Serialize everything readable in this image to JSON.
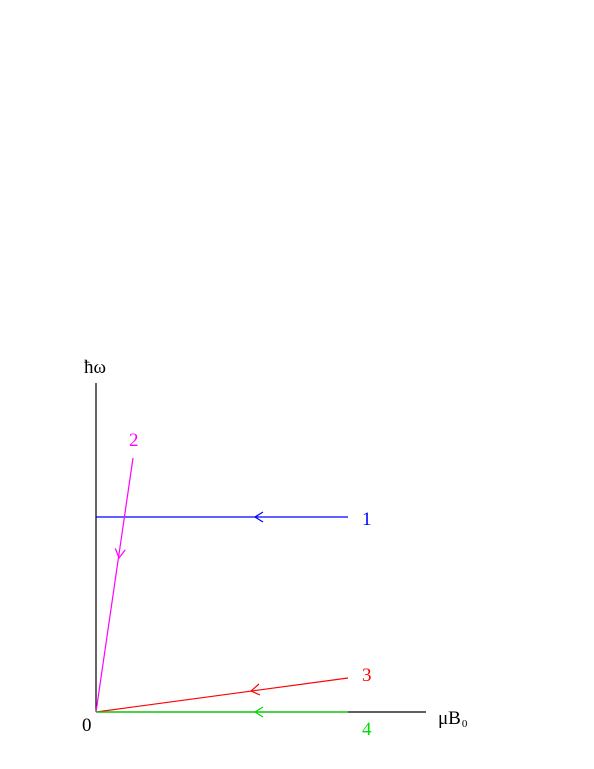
{
  "axes": {
    "y_label": "ħω",
    "x_label": "μB",
    "x_label_subscript": "0",
    "origin": "0"
  },
  "lines": [
    {
      "label": "1",
      "color": "#0000ff"
    },
    {
      "label": "2",
      "color": "#ff00ff"
    },
    {
      "label": "3",
      "color": "#ff0000"
    },
    {
      "label": "4",
      "color": "#00dd00"
    }
  ]
}
